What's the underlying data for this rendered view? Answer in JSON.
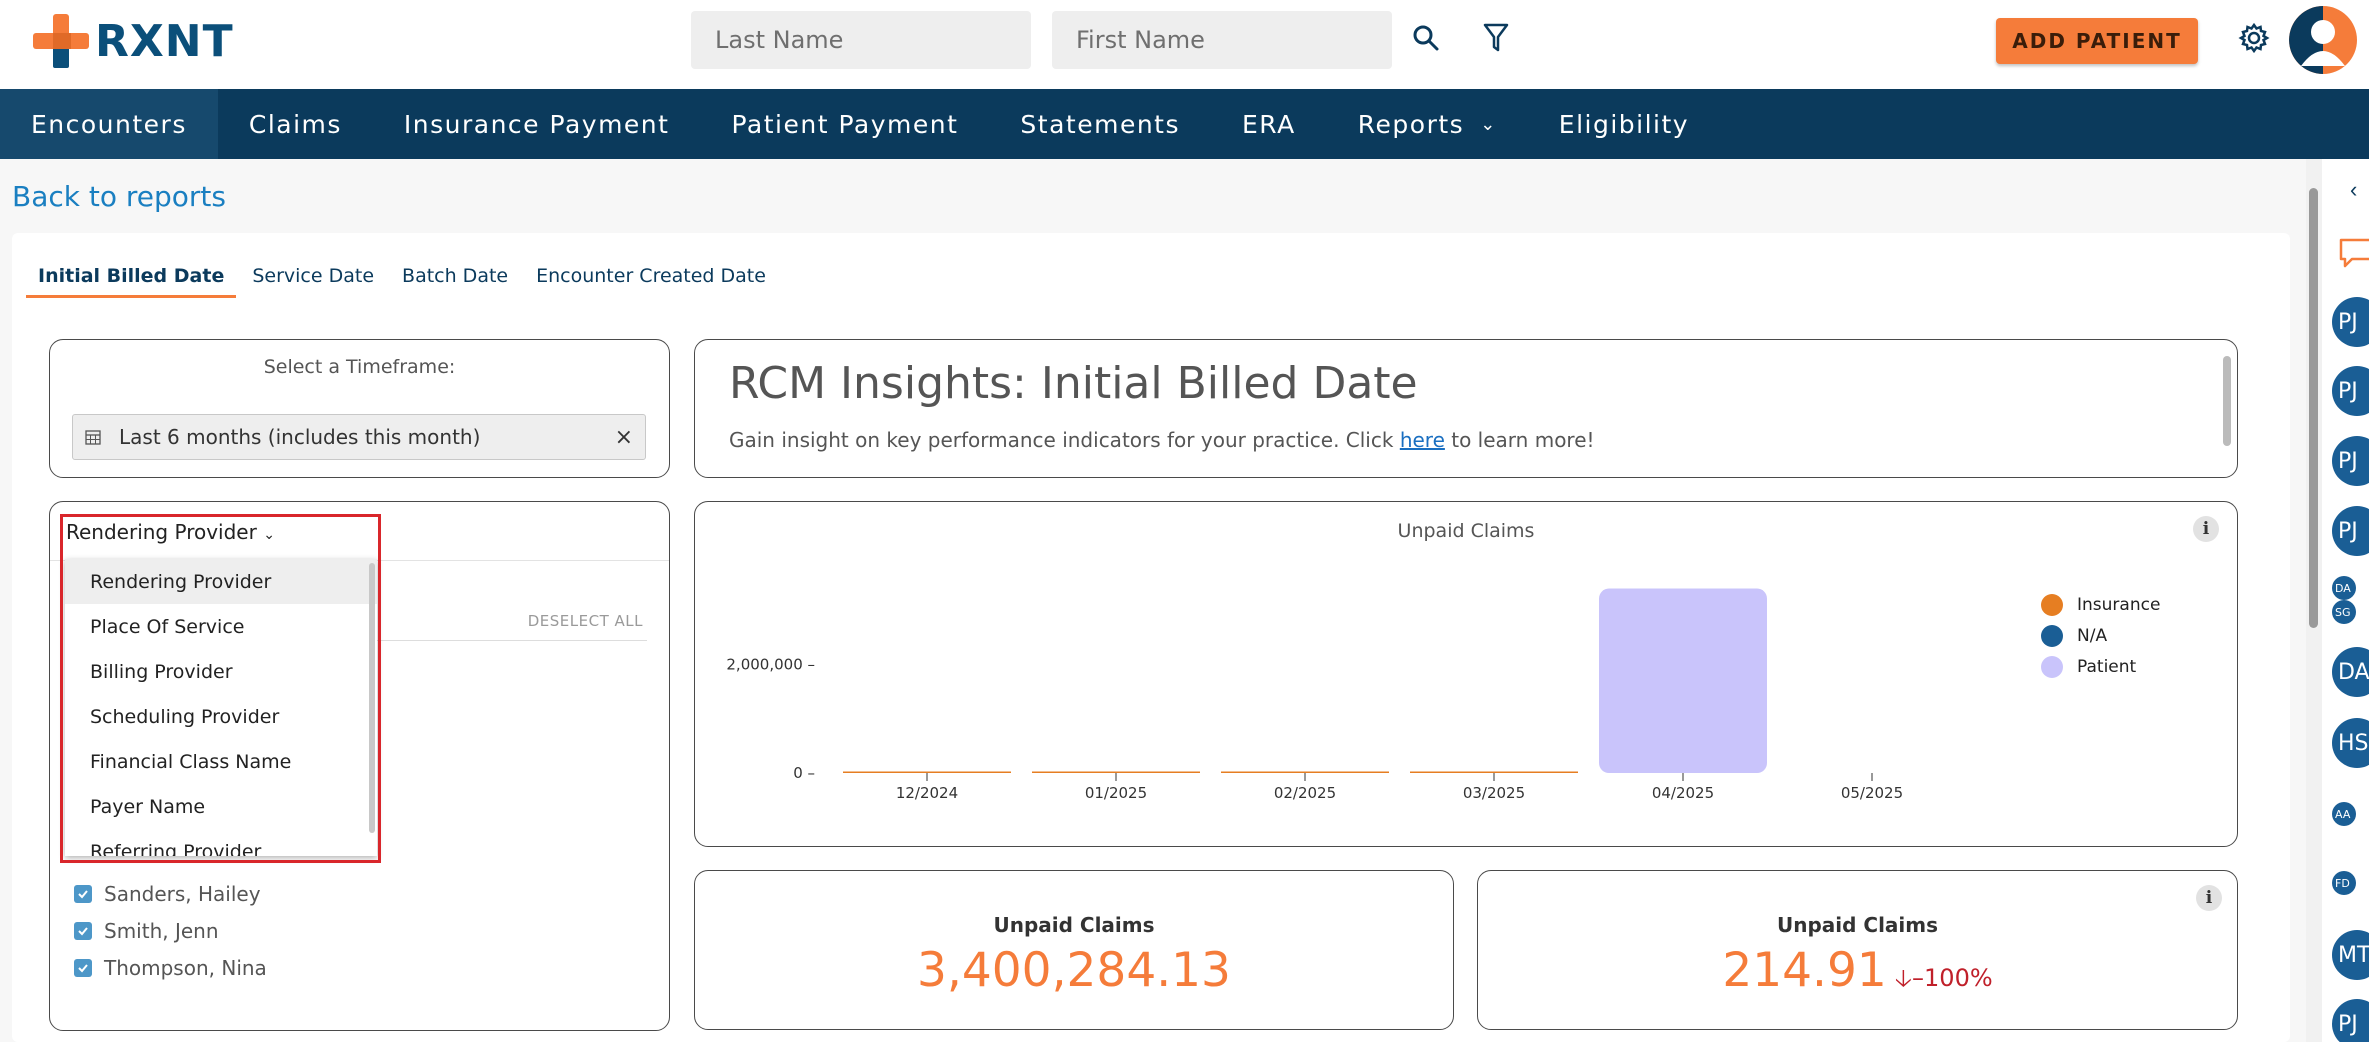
{
  "header": {
    "logo_text": "RXNT",
    "last_name_placeholder": "Last Name",
    "first_name_placeholder": "First Name",
    "add_patient_label": "ADD PATIENT"
  },
  "nav": {
    "items": [
      "Encounters",
      "Claims",
      "Insurance Payment",
      "Patient Payment",
      "Statements",
      "ERA",
      "Reports",
      "Eligibility"
    ]
  },
  "back_link": "Back to reports",
  "tabs": [
    "Initial Billed Date",
    "Service Date",
    "Batch Date",
    "Encounter Created Date"
  ],
  "timeframe": {
    "title": "Select a Timeframe:",
    "value": "Last 6 months (includes this month)",
    "clear": "×"
  },
  "insights": {
    "title": "RCM Insights: Initial Billed Date",
    "subtitle_pre": "Gain insight on key performance indicators for your practice. Click ",
    "subtitle_link": "here",
    "subtitle_post": " to learn more!"
  },
  "filter": {
    "selected": "Rendering Provider",
    "deselect_all": "DESELECT ALL",
    "options": [
      "Rendering Provider",
      "Place Of Service",
      "Billing Provider",
      "Scheduling Provider",
      "Financial Class Name",
      "Payer Name",
      "Referring Provider"
    ],
    "checked_items": [
      "Sanders, Hailey",
      "Smith, Jenn",
      "Thompson, Nina"
    ]
  },
  "chart_data": {
    "type": "bar",
    "title": "Unpaid Claims",
    "categories": [
      "12/2024",
      "01/2025",
      "02/2025",
      "03/2025",
      "04/2025",
      "05/2025"
    ],
    "series": [
      {
        "name": "Insurance",
        "color": "#e67e22",
        "values": [
          0,
          0,
          0,
          0,
          0,
          0
        ]
      },
      {
        "name": "N/A",
        "color": "#1a5e95",
        "values": [
          0,
          0,
          0,
          0,
          0,
          0
        ]
      },
      {
        "name": "Patient",
        "color": "#c9c4fb",
        "values": [
          0,
          0,
          0,
          0,
          3400000,
          0
        ]
      }
    ],
    "yticks": [
      "0",
      "2,000,000"
    ],
    "ylim": [
      0,
      4000000
    ],
    "legend": "right"
  },
  "kpis": [
    {
      "title": "Unpaid Claims",
      "value": "3,400,284.13",
      "change": ""
    },
    {
      "title": "Unpaid Claims",
      "value": "214.91",
      "change": "–100%"
    }
  ],
  "info_label": "i",
  "sidebar_bubbles": [
    "PJ",
    "PJ",
    "PJ",
    "PJ",
    "DA",
    "SG",
    "DA",
    "HS",
    "AA",
    "FD",
    "MT",
    "PJ"
  ]
}
